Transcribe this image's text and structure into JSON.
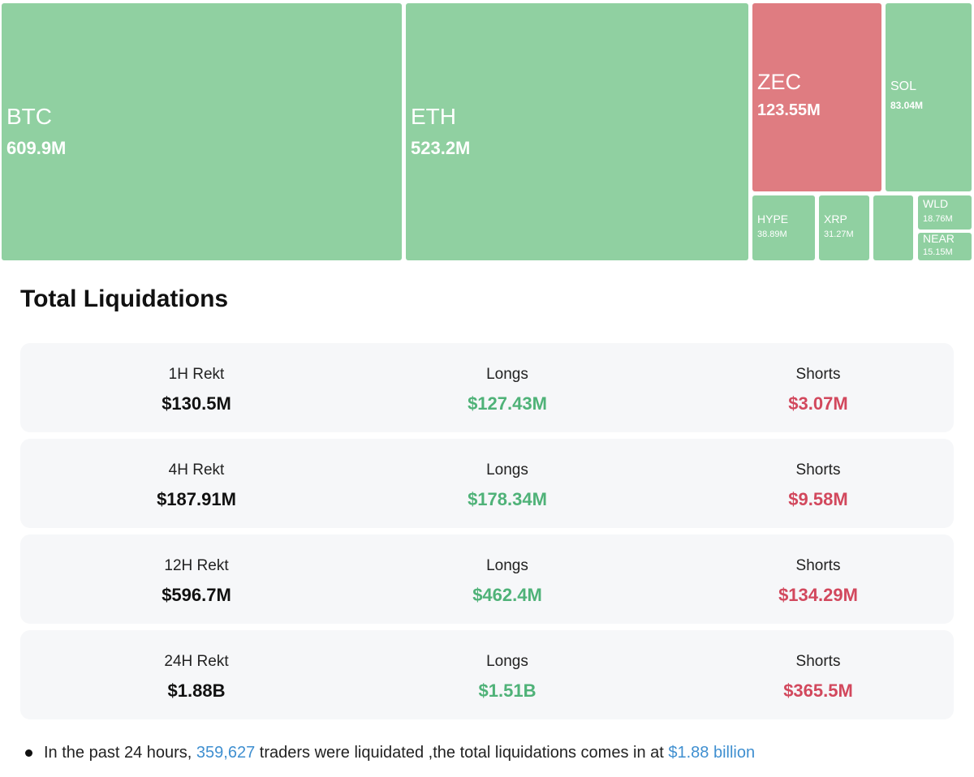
{
  "treemap": {
    "tiles": [
      {
        "name": "BTC",
        "value": "609.9M"
      },
      {
        "name": "ETH",
        "value": "523.2M"
      },
      {
        "name": "ZEC",
        "value": "123.55M"
      },
      {
        "name": "SOL",
        "value": "83.04M"
      },
      {
        "name": "HYPE",
        "value": "38.89M"
      },
      {
        "name": "XRP",
        "value": "31.27M"
      },
      {
        "name": "WLD",
        "value": "18.76M"
      },
      {
        "name": "NEAR",
        "value": "15.15M"
      }
    ]
  },
  "section_title": "Total Liquidations",
  "table": {
    "rows": [
      {
        "label": "1H Rekt",
        "total": "$130.5M",
        "longs_label": "Longs",
        "longs": "$127.43M",
        "shorts_label": "Shorts",
        "shorts": "$3.07M"
      },
      {
        "label": "4H Rekt",
        "total": "$187.91M",
        "longs_label": "Longs",
        "longs": "$178.34M",
        "shorts_label": "Shorts",
        "shorts": "$9.58M"
      },
      {
        "label": "12H Rekt",
        "total": "$596.7M",
        "longs_label": "Longs",
        "longs": "$462.4M",
        "shorts_label": "Shorts",
        "shorts": "$134.29M"
      },
      {
        "label": "24H Rekt",
        "total": "$1.88B",
        "longs_label": "Longs",
        "longs": "$1.51B",
        "shorts_label": "Shorts",
        "shorts": "$365.5M"
      }
    ]
  },
  "note": {
    "parts": [
      "In the past 24 hours, ",
      "359,627",
      " traders were liquidated ,the total liquidations comes in at ",
      "$1.88 billion"
    ]
  }
}
